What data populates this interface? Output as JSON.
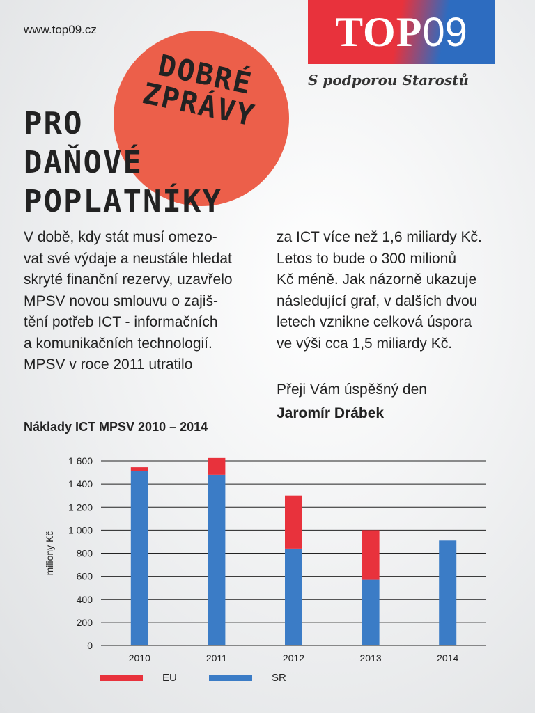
{
  "header": {
    "url": "www.top09.cz",
    "logo_top": "TOP",
    "logo_num": "09",
    "support": "S podporou Starostů"
  },
  "badge": {
    "lines": [
      "DOBRÉ",
      "ZPRÁVY"
    ]
  },
  "headline": {
    "lines": [
      "PRO",
      "DAŇOVÉ",
      "POPLATNÍKY"
    ]
  },
  "body": {
    "left_lines": [
      "V době, kdy stát musí omezo-",
      "vat své výdaje a neustále hledat",
      "skryté finanční rezervy, uzavřelo",
      "MPSV novou smlouvu o zajiš-",
      "tění potřeb ICT - informačních",
      "a komunikačních technologií.",
      "MPSV v roce 2011 utratilo"
    ],
    "right_lines": [
      "za ICT více než 1,6 miliardy Kč.",
      "Letos to bude o 300 milionů",
      "Kč méně. Jak názorně ukazuje",
      "následující graf, v dalších dvou",
      "letech vznikne celková úspora",
      "ve výši cca 1,5 miliardy Kč."
    ],
    "greeting": "Přeji Vám úspěšný den",
    "signature": "Jaromír Drábek"
  },
  "colors": {
    "eu": "#e8323c",
    "sr": "#3b7cc6",
    "accent_circle": "#ec5f4a"
  },
  "chart_data": {
    "type": "bar",
    "stacked": true,
    "title": "Náklady ICT MPSV 2010 – 2014",
    "xlabel": "",
    "ylabel": "miliony Kč",
    "categories": [
      "2010",
      "2011",
      "2012",
      "2013",
      "2014"
    ],
    "ylim": [
      0,
      1600
    ],
    "yticks": [
      0,
      200,
      400,
      600,
      800,
      1000,
      1200,
      1400,
      1600
    ],
    "ytick_labels": [
      "0",
      "200",
      "400",
      "600",
      "800",
      "1 000",
      "1 200",
      "1 400",
      "1 600"
    ],
    "grid": true,
    "legend_position": "bottom",
    "series": [
      {
        "name": "SR",
        "color": "#3b7cc6",
        "values": [
          1510,
          1480,
          840,
          570,
          910
        ]
      },
      {
        "name": "EU",
        "color": "#e8323c",
        "values": [
          35,
          145,
          460,
          430,
          0
        ]
      }
    ]
  }
}
